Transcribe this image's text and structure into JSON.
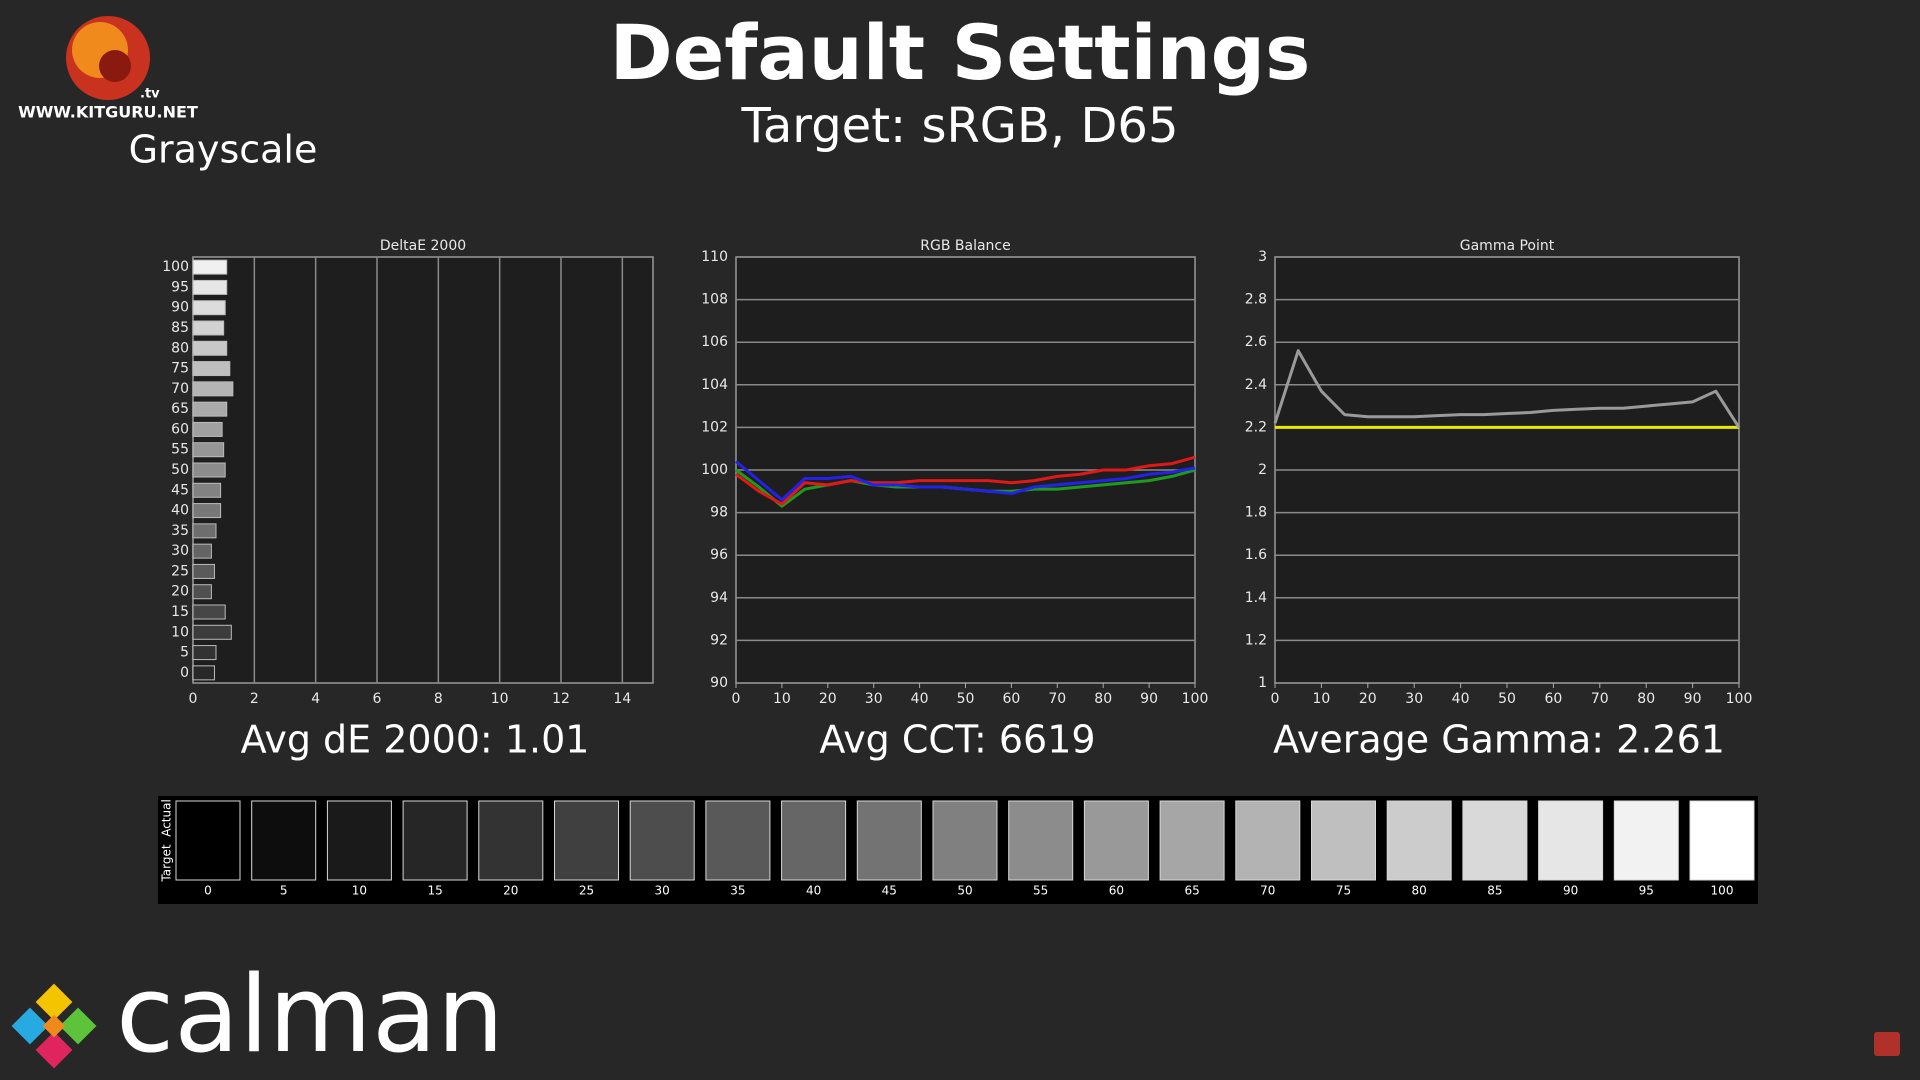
{
  "header": {
    "title": "Default Settings",
    "subtitle": "Target: sRGB, D65",
    "section": "Grayscale",
    "site": "WWW.KITGURU.NET",
    "site_suffix": ".tv",
    "brand": "calman"
  },
  "chart_data": [
    {
      "type": "hbar",
      "title": "DeltaE 2000",
      "annotation": "Avg dE 2000: 1.01",
      "categories": [
        "100",
        "95",
        "90",
        "85",
        "80",
        "75",
        "70",
        "65",
        "60",
        "55",
        "50",
        "45",
        "40",
        "35",
        "30",
        "25",
        "20",
        "15",
        "10",
        "5",
        "0"
      ],
      "values": [
        1.1,
        1.1,
        1.05,
        1.0,
        1.1,
        1.2,
        1.3,
        1.1,
        0.95,
        1.0,
        1.05,
        0.9,
        0.9,
        0.75,
        0.6,
        0.7,
        0.6,
        1.05,
        1.25,
        0.75,
        0.7
      ],
      "xlim": [
        0,
        15
      ],
      "xticks": [
        0,
        2,
        4,
        6,
        8,
        10,
        12,
        14
      ],
      "grid": "x"
    },
    {
      "type": "line",
      "title": "RGB Balance",
      "annotation": "Avg CCT: 6619",
      "x": [
        0,
        5,
        10,
        15,
        20,
        25,
        30,
        35,
        40,
        45,
        50,
        55,
        60,
        65,
        70,
        75,
        80,
        85,
        90,
        95,
        100
      ],
      "series": [
        {
          "color": "#1f9a1f",
          "values": [
            100,
            99.2,
            98.3,
            99.1,
            99.3,
            99.5,
            99.3,
            99.2,
            99.2,
            99.2,
            99.1,
            99,
            99,
            99.1,
            99.1,
            99.2,
            99.3,
            99.4,
            99.5,
            99.7,
            100
          ]
        },
        {
          "color": "#e01818",
          "values": [
            99.8,
            99,
            98.4,
            99.4,
            99.3,
            99.5,
            99.4,
            99.4,
            99.5,
            99.5,
            99.5,
            99.5,
            99.4,
            99.5,
            99.7,
            99.8,
            100,
            100,
            100.2,
            100.3,
            100.6
          ]
        },
        {
          "color": "#2222e8",
          "values": [
            100.4,
            99.5,
            98.6,
            99.6,
            99.6,
            99.7,
            99.3,
            99.3,
            99.2,
            99.2,
            99.1,
            99,
            98.9,
            99.2,
            99.3,
            99.4,
            99.5,
            99.6,
            99.8,
            99.9,
            100.1
          ]
        }
      ],
      "xlim": [
        0,
        100
      ],
      "xticks": [
        0,
        10,
        20,
        30,
        40,
        50,
        60,
        70,
        80,
        90,
        100
      ],
      "ylim": [
        90,
        110
      ],
      "yticks": [
        90,
        92,
        94,
        96,
        98,
        100,
        102,
        104,
        106,
        108,
        110
      ],
      "grid": "y"
    },
    {
      "type": "line",
      "title": "Gamma Point",
      "annotation": "Average Gamma: 2.261",
      "x": [
        0,
        5,
        10,
        15,
        20,
        25,
        30,
        35,
        40,
        45,
        50,
        55,
        60,
        65,
        70,
        75,
        80,
        85,
        90,
        95,
        100
      ],
      "series": [
        {
          "color": "#e8e800",
          "values": [
            2.2,
            2.2,
            2.2,
            2.2,
            2.2,
            2.2,
            2.2,
            2.2,
            2.2,
            2.2,
            2.2,
            2.2,
            2.2,
            2.2,
            2.2,
            2.2,
            2.2,
            2.2,
            2.2,
            2.2,
            2.2
          ]
        },
        {
          "color": "#9a9a9a",
          "values": [
            2.22,
            2.56,
            2.37,
            2.26,
            2.25,
            2.25,
            2.25,
            2.255,
            2.26,
            2.26,
            2.265,
            2.27,
            2.28,
            2.285,
            2.29,
            2.29,
            2.3,
            2.31,
            2.32,
            2.37,
            2.2
          ]
        }
      ],
      "xlim": [
        0,
        100
      ],
      "xticks": [
        0,
        10,
        20,
        30,
        40,
        50,
        60,
        70,
        80,
        90,
        100
      ],
      "ylim": [
        1,
        3
      ],
      "yticks": [
        1,
        1.2,
        1.4,
        1.6,
        1.8,
        2,
        2.2,
        2.4,
        2.6,
        2.8,
        3
      ],
      "grid": "y"
    }
  ],
  "swatches": {
    "labels": [
      "Actual",
      "Target"
    ],
    "levels": [
      "0",
      "5",
      "10",
      "15",
      "20",
      "25",
      "30",
      "35",
      "40",
      "45",
      "50",
      "55",
      "60",
      "65",
      "70",
      "75",
      "80",
      "85",
      "90",
      "95",
      "100"
    ]
  }
}
